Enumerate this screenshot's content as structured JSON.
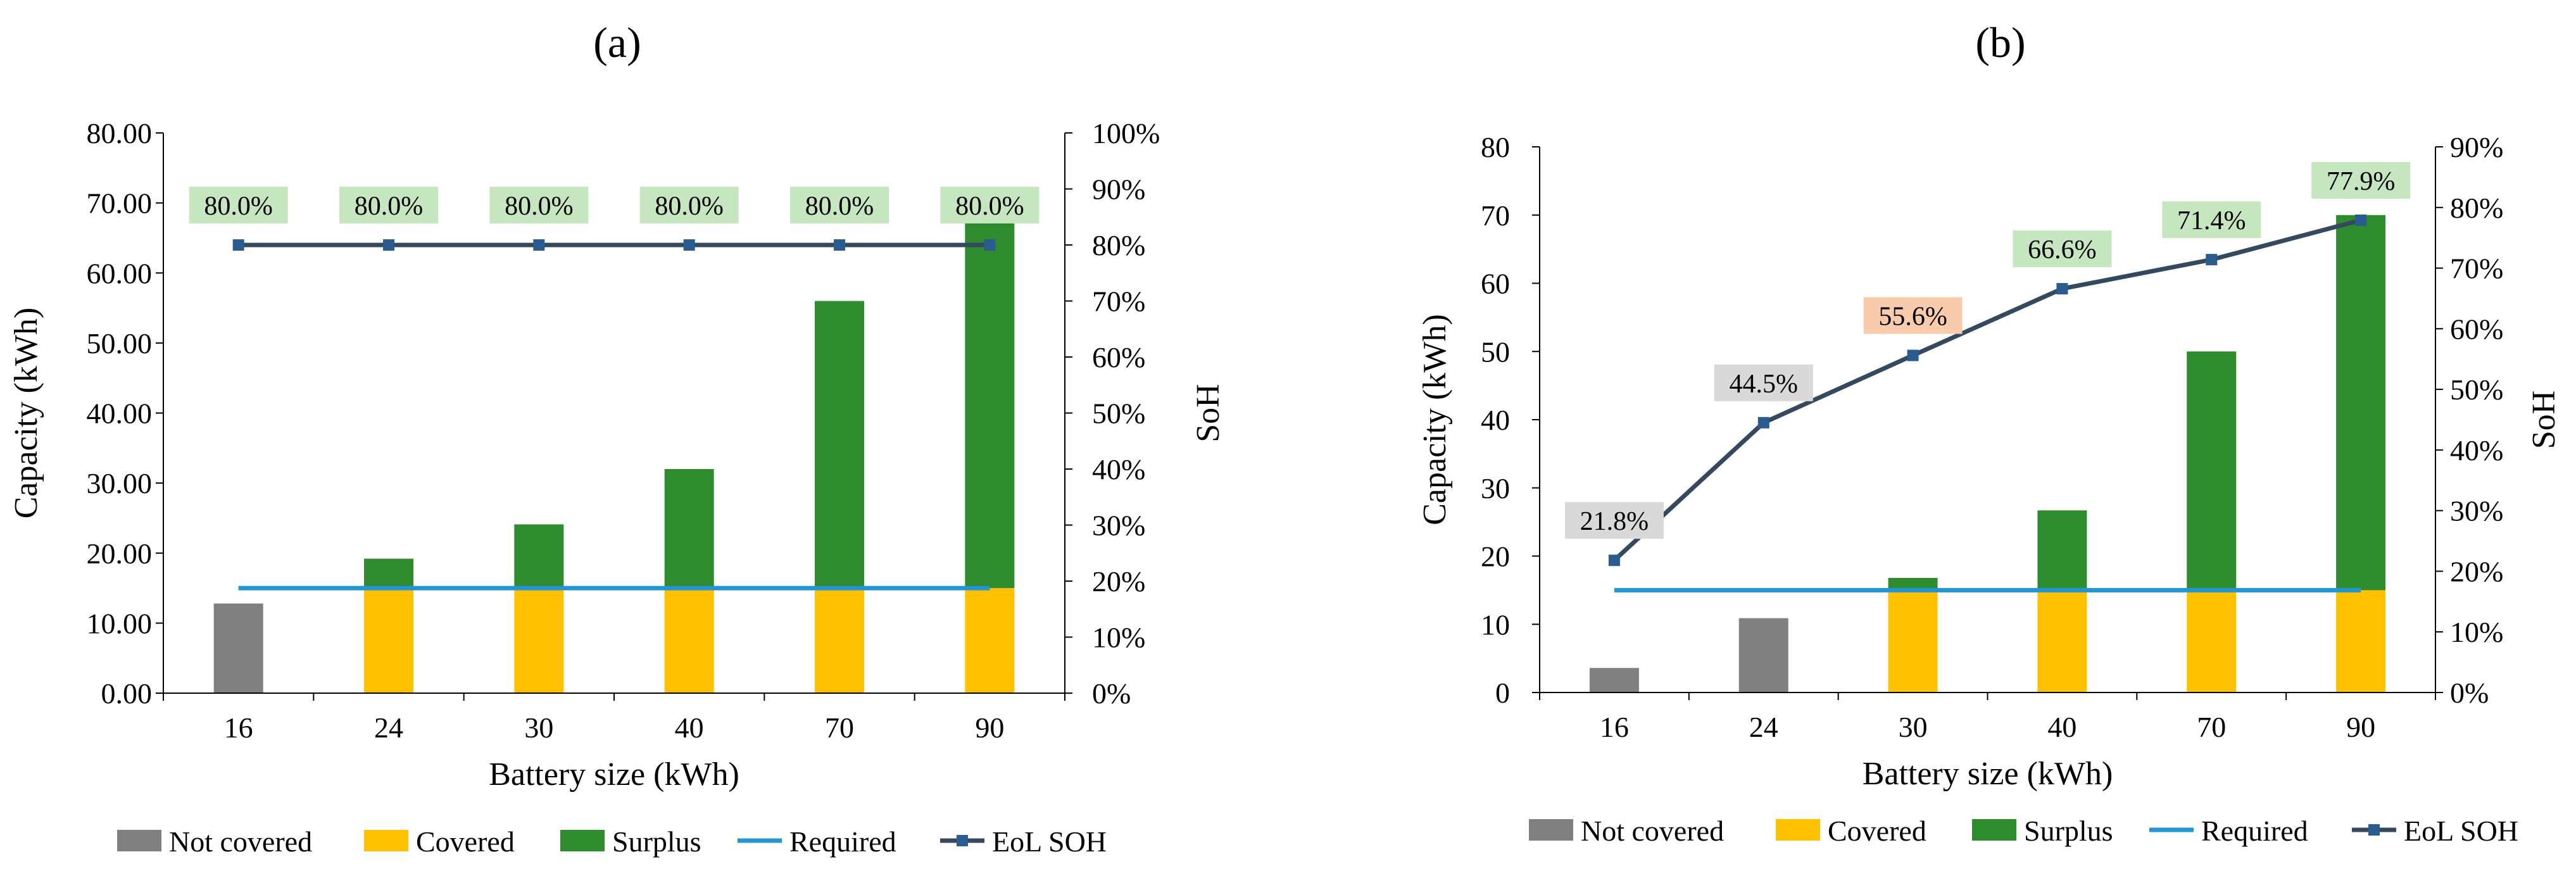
{
  "colors": {
    "not_covered": "#808080",
    "covered": "#FFC000",
    "surplus": "#2E8B2E",
    "required": "#2196D3",
    "eol_soh": "#34495E",
    "eol_marker": "#2B5C8F",
    "label_green": "#C6E6C0",
    "label_orange": "#F8CBAD",
    "label_gray": "#D9D9D9"
  },
  "legend": {
    "items": [
      {
        "key": "not_covered",
        "label": "Not covered",
        "kind": "bar"
      },
      {
        "key": "covered",
        "label": "Covered",
        "kind": "bar"
      },
      {
        "key": "surplus",
        "label": "Surplus",
        "kind": "bar"
      },
      {
        "key": "required",
        "label": "Required",
        "kind": "line"
      },
      {
        "key": "eol_soh",
        "label": "EoL SOH",
        "kind": "line-marker"
      }
    ]
  },
  "chart_data": [
    {
      "panel_label": "(a)",
      "type": "bar",
      "stacked": true,
      "xlabel": "Battery size (kWh)",
      "ylabel": "Capacity (kWh)",
      "y2label": "SoH",
      "categories": [
        "16",
        "24",
        "30",
        "40",
        "70",
        "90"
      ],
      "ylim": [
        0,
        80
      ],
      "yticks": [
        "0.00",
        "10.00",
        "20.00",
        "30.00",
        "40.00",
        "50.00",
        "60.00",
        "70.00",
        "80.00"
      ],
      "y2lim": [
        0,
        100
      ],
      "y2ticks": [
        "0%",
        "10%",
        "20%",
        "30%",
        "40%",
        "50%",
        "60%",
        "70%",
        "80%",
        "90%",
        "100%"
      ],
      "series": [
        {
          "name": "Not covered",
          "key": "not_covered",
          "values": [
            12.8,
            0,
            0,
            0,
            0,
            0
          ]
        },
        {
          "name": "Covered",
          "key": "covered",
          "values": [
            0,
            15,
            15,
            15,
            15,
            15
          ]
        },
        {
          "name": "Surplus",
          "key": "surplus",
          "values": [
            0,
            4.2,
            9.1,
            17.0,
            41.0,
            57.0
          ]
        }
      ],
      "required": {
        "name": "Required",
        "value": 15
      },
      "eol_soh": {
        "name": "EoL SOH",
        "values": [
          80.0,
          80.0,
          80.0,
          80.0,
          80.0,
          80.0
        ],
        "labels": [
          "80.0%",
          "80.0%",
          "80.0%",
          "80.0%",
          "80.0%",
          "80.0%"
        ],
        "label_colors": [
          "label_green",
          "label_green",
          "label_green",
          "label_green",
          "label_green",
          "label_green"
        ]
      }
    },
    {
      "panel_label": "(b)",
      "type": "bar",
      "stacked": true,
      "xlabel": "Battery size (kWh)",
      "ylabel": "Capacity (kWh)",
      "y2label": "SoH",
      "categories": [
        "16",
        "24",
        "30",
        "40",
        "70",
        "90"
      ],
      "ylim": [
        0,
        80
      ],
      "yticks": [
        "0",
        "10",
        "20",
        "30",
        "40",
        "50",
        "60",
        "70",
        "80"
      ],
      "y2lim": [
        0,
        90
      ],
      "y2ticks": [
        "0%",
        "10%",
        "20%",
        "30%",
        "40%",
        "50%",
        "60%",
        "70%",
        "80%",
        "90%"
      ],
      "series": [
        {
          "name": "Not covered",
          "key": "not_covered",
          "values": [
            3.6,
            10.9,
            0,
            0,
            0,
            0
          ]
        },
        {
          "name": "Covered",
          "key": "covered",
          "values": [
            0,
            0,
            15,
            15,
            15,
            15
          ]
        },
        {
          "name": "Surplus",
          "key": "surplus",
          "values": [
            0,
            0,
            1.8,
            11.7,
            35.0,
            55.0
          ]
        }
      ],
      "required": {
        "name": "Required",
        "value": 15
      },
      "eol_soh": {
        "name": "EoL SOH",
        "values": [
          21.8,
          44.5,
          55.6,
          66.6,
          71.4,
          77.9
        ],
        "labels": [
          "21.8%",
          "44.5%",
          "55.6%",
          "66.6%",
          "71.4%",
          "77.9%"
        ],
        "label_colors": [
          "label_gray",
          "label_gray",
          "label_orange",
          "label_green",
          "label_green",
          "label_green"
        ]
      }
    }
  ]
}
